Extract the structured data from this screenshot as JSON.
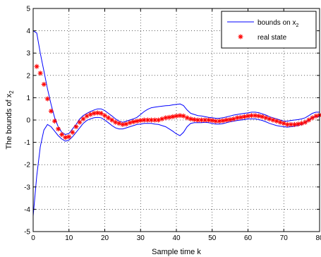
{
  "chart_data": {
    "type": "line",
    "xlabel": "Sample time k",
    "ylabel": "The bounds of x",
    "ylabel_sub": "2",
    "xlim": [
      0,
      80
    ],
    "ylim": [
      -5,
      5
    ],
    "xticks": [
      0,
      10,
      20,
      30,
      40,
      50,
      60,
      70,
      80
    ],
    "yticks": [
      -5,
      -4,
      -3,
      -2,
      -1,
      0,
      1,
      2,
      3,
      4,
      5
    ],
    "grid": true,
    "legend_position": "top-right",
    "legend": [
      {
        "label": "bounds on x",
        "sub": "2",
        "style": "line"
      },
      {
        "label": "real state",
        "style": "asterisk"
      }
    ],
    "colors": {
      "bounds": "#0000ff",
      "state": "#ff0000"
    },
    "series": [
      {
        "name": "upper bound",
        "x": [
          0,
          1,
          2,
          3,
          4,
          5,
          6,
          7,
          8,
          9,
          10,
          11,
          12,
          13,
          14,
          15,
          16,
          17,
          18,
          19,
          20,
          21,
          22,
          23,
          24,
          25,
          26,
          27,
          28,
          29,
          30,
          31,
          32,
          33,
          34,
          35,
          36,
          37,
          38,
          39,
          40,
          41,
          42,
          43,
          44,
          45,
          46,
          47,
          48,
          49,
          50,
          51,
          52,
          53,
          54,
          55,
          56,
          57,
          58,
          59,
          60,
          61,
          62,
          63,
          64,
          65,
          66,
          67,
          68,
          69,
          70,
          71,
          72,
          73,
          74,
          75,
          76,
          77,
          78,
          79,
          80
        ],
        "y": [
          4.0,
          3.9,
          3.0,
          2.2,
          1.4,
          0.7,
          0.1,
          -0.3,
          -0.55,
          -0.65,
          -0.6,
          -0.4,
          -0.2,
          0.05,
          0.2,
          0.3,
          0.38,
          0.45,
          0.5,
          0.5,
          0.42,
          0.3,
          0.18,
          0.05,
          -0.05,
          -0.1,
          -0.05,
          0.0,
          0.05,
          0.12,
          0.25,
          0.38,
          0.48,
          0.55,
          0.58,
          0.6,
          0.62,
          0.64,
          0.65,
          0.68,
          0.7,
          0.72,
          0.65,
          0.45,
          0.3,
          0.25,
          0.2,
          0.18,
          0.15,
          0.12,
          0.1,
          0.08,
          0.08,
          0.1,
          0.14,
          0.18,
          0.22,
          0.25,
          0.28,
          0.3,
          0.32,
          0.35,
          0.35,
          0.33,
          0.28,
          0.22,
          0.15,
          0.1,
          0.05,
          0.0,
          -0.05,
          -0.05,
          -0.02,
          0.0,
          0.02,
          0.05,
          0.1,
          0.2,
          0.3,
          0.35,
          0.35
        ]
      },
      {
        "name": "lower bound",
        "x": [
          0,
          1,
          2,
          3,
          4,
          5,
          6,
          7,
          8,
          9,
          10,
          11,
          12,
          13,
          14,
          15,
          16,
          17,
          18,
          19,
          20,
          21,
          22,
          23,
          24,
          25,
          26,
          27,
          28,
          29,
          30,
          31,
          32,
          33,
          34,
          35,
          36,
          37,
          38,
          39,
          40,
          41,
          42,
          43,
          44,
          45,
          46,
          47,
          48,
          49,
          50,
          51,
          52,
          53,
          54,
          55,
          56,
          57,
          58,
          59,
          60,
          61,
          62,
          63,
          64,
          65,
          66,
          67,
          68,
          69,
          70,
          71,
          72,
          73,
          74,
          75,
          76,
          77,
          78,
          79,
          80
        ],
        "y": [
          -4.3,
          -2.5,
          -1.2,
          -0.45,
          -0.2,
          -0.3,
          -0.5,
          -0.7,
          -0.85,
          -0.95,
          -0.9,
          -0.75,
          -0.55,
          -0.35,
          -0.15,
          -0.02,
          0.05,
          0.1,
          0.12,
          0.1,
          0.0,
          -0.12,
          -0.25,
          -0.35,
          -0.4,
          -0.4,
          -0.35,
          -0.3,
          -0.25,
          -0.2,
          -0.18,
          -0.15,
          -0.15,
          -0.15,
          -0.18,
          -0.2,
          -0.25,
          -0.3,
          -0.4,
          -0.5,
          -0.62,
          -0.7,
          -0.55,
          -0.3,
          -0.15,
          -0.12,
          -0.12,
          -0.12,
          -0.1,
          -0.12,
          -0.15,
          -0.18,
          -0.18,
          -0.16,
          -0.12,
          -0.08,
          -0.05,
          -0.02,
          0.0,
          0.02,
          0.05,
          0.05,
          0.05,
          0.02,
          -0.02,
          -0.08,
          -0.15,
          -0.2,
          -0.25,
          -0.28,
          -0.3,
          -0.32,
          -0.3,
          -0.28,
          -0.25,
          -0.2,
          -0.1,
          0.0,
          0.1,
          0.15,
          0.15
        ]
      },
      {
        "name": "real state",
        "x": [
          1,
          2,
          3,
          4,
          5,
          6,
          7,
          8,
          9,
          10,
          11,
          12,
          13,
          14,
          15,
          16,
          17,
          18,
          19,
          20,
          21,
          22,
          23,
          24,
          25,
          26,
          27,
          28,
          29,
          30,
          31,
          32,
          33,
          34,
          35,
          36,
          37,
          38,
          39,
          40,
          41,
          42,
          43,
          44,
          45,
          46,
          47,
          48,
          49,
          50,
          51,
          52,
          53,
          54,
          55,
          56,
          57,
          58,
          59,
          60,
          61,
          62,
          63,
          64,
          65,
          66,
          67,
          68,
          69,
          70,
          71,
          72,
          73,
          74,
          75,
          76,
          77,
          78,
          79,
          80
        ],
        "y": [
          2.4,
          2.1,
          1.6,
          0.95,
          0.4,
          -0.05,
          -0.4,
          -0.65,
          -0.78,
          -0.75,
          -0.55,
          -0.3,
          -0.1,
          0.05,
          0.18,
          0.25,
          0.3,
          0.32,
          0.3,
          0.2,
          0.1,
          0.0,
          -0.1,
          -0.15,
          -0.2,
          -0.18,
          -0.12,
          -0.08,
          -0.05,
          -0.02,
          0.0,
          0.0,
          0.0,
          0.0,
          0.0,
          0.05,
          0.1,
          0.12,
          0.15,
          0.18,
          0.2,
          0.18,
          0.1,
          0.05,
          0.02,
          0.0,
          0.0,
          0.0,
          0.0,
          -0.02,
          -0.05,
          -0.05,
          -0.03,
          0.0,
          0.02,
          0.05,
          0.1,
          0.12,
          0.15,
          0.18,
          0.2,
          0.2,
          0.18,
          0.15,
          0.1,
          0.05,
          0.0,
          -0.05,
          -0.1,
          -0.15,
          -0.2,
          -0.2,
          -0.2,
          -0.18,
          -0.15,
          -0.1,
          0.0,
          0.1,
          0.18,
          0.22
        ]
      }
    ]
  }
}
